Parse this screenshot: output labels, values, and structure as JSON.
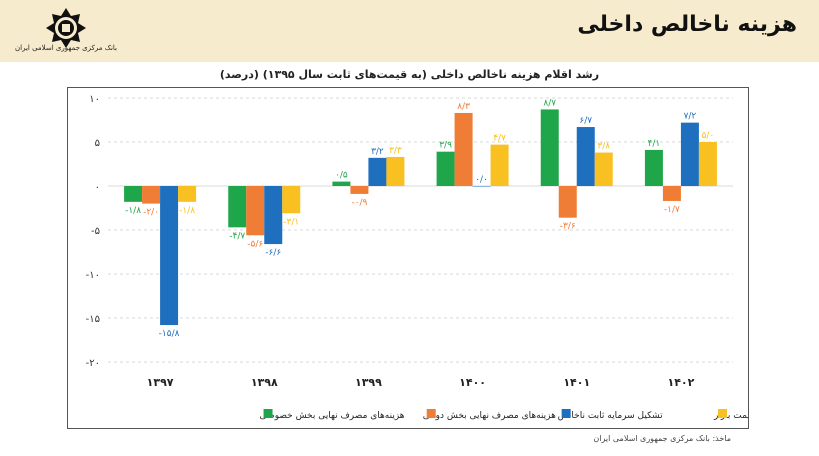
{
  "header": {
    "page_title": "هزینه ناخالص داخلی",
    "bank_name": "بانک مرکزی جمهوری اسلامی ایران",
    "logo_icon": "central-bank-emblem-icon"
  },
  "source_note": "ماخذ: بانک مرکزی جمهوری اسلامی ایران",
  "colors": {
    "header_bg": "#f7ebcd",
    "private": "#1fa64a",
    "government": "#ef7d35",
    "capital": "#1f6fbf",
    "gdp": "#f9c021",
    "label_red": "#c0392b"
  },
  "chart_data": {
    "type": "bar",
    "title": "رشد اقلام هزینه ناخالص داخلی (به قیمت‌های ثابت سال ۱۳۹۵) (درصد)",
    "categories": [
      "۱۳۹۷",
      "۱۳۹۸",
      "۱۳۹۹",
      "۱۴۰۰",
      "۱۴۰۱",
      "۱۴۰۲"
    ],
    "ylim": [
      -20,
      10
    ],
    "yticks": [
      {
        "value": 10,
        "label": "۱۰"
      },
      {
        "value": 5,
        "label": "۵"
      },
      {
        "value": 0,
        "label": "۰"
      },
      {
        "value": -5,
        "label": "-۵"
      },
      {
        "value": -10,
        "label": "-۱۰"
      },
      {
        "value": -15,
        "label": "-۱۵"
      },
      {
        "value": -20,
        "label": "-۲۰"
      }
    ],
    "grid": true,
    "legend_position": "bottom",
    "series": [
      {
        "name": "هزینه‌های مصرف نهایی بخش خصوصی",
        "color": "#1fa64a",
        "values": [
          -1.8,
          -4.7,
          0.5,
          3.9,
          8.7,
          4.1
        ],
        "labels": [
          "-۱/۸",
          "-۴/۷",
          "۰/۵",
          "۳/۹",
          "۸/۷",
          "۴/۱"
        ]
      },
      {
        "name": "هزینه‌های مصرف نهایی بخش دولتی",
        "color": "#ef7d35",
        "values": [
          -2.0,
          -5.6,
          -0.9,
          8.3,
          -3.6,
          -1.7
        ],
        "labels": [
          "-۲/۰",
          "-۵/۶",
          "-۰/۹",
          "۸/۳",
          "-۳/۶",
          "-۱/۷"
        ]
      },
      {
        "name": "تشکیل سرمایه ثابت ناخالص",
        "color": "#1f6fbf",
        "values": [
          -15.8,
          -6.6,
          3.2,
          0.0,
          6.7,
          7.2
        ],
        "labels": [
          "-۱۵/۸",
          "-۶/۶",
          "۳/۲",
          "۰/۰",
          "۶/۷",
          "۷/۲"
        ]
      },
      {
        "name": "تولید ناخالص داخلی به قیمت بازار",
        "color": "#f9c021",
        "values": [
          -1.8,
          -3.1,
          3.3,
          4.7,
          3.8,
          5.0
        ],
        "labels": [
          "-۱/۸",
          "-۳/۱",
          "۳/۳",
          "۴/۷",
          "۳/۸",
          "۵/۰"
        ]
      }
    ]
  }
}
